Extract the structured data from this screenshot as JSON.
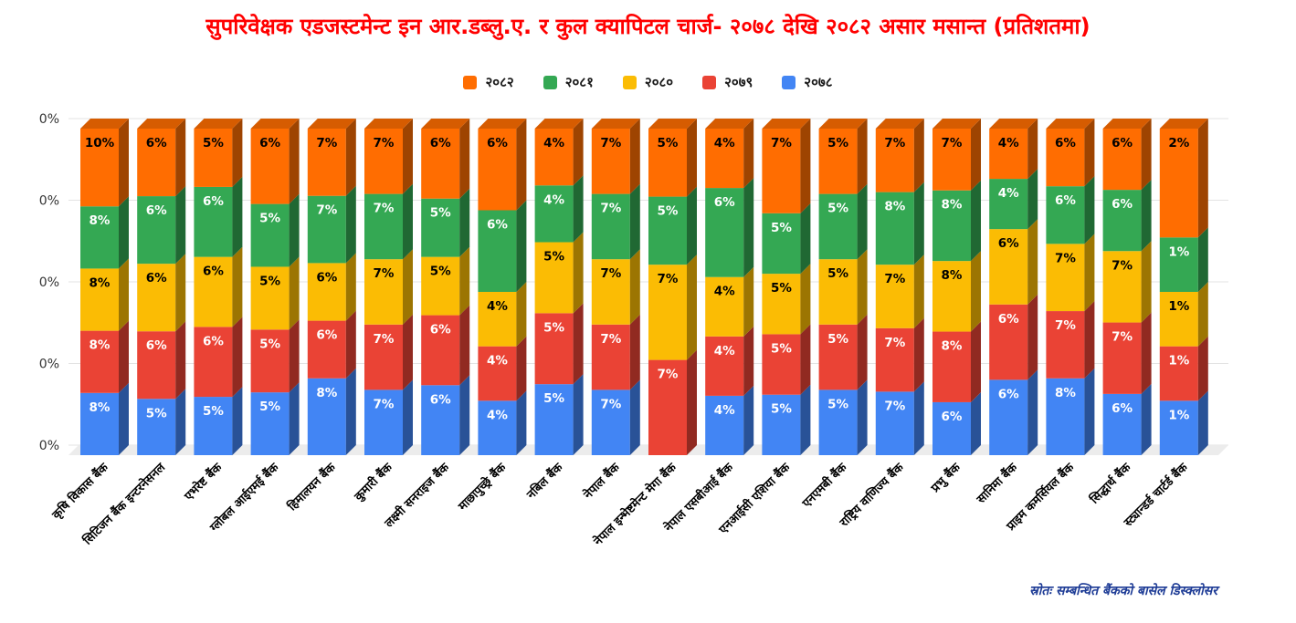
{
  "title": "सुपरिवेक्षक एडजस्टमेन्ट इन आर.डब्लु.ए. र कुल क्यापिटल चार्ज- २०७८ देखि २०८२ असार मसान्त (प्रतिशतमा)",
  "source_note": "स्रोतः सम्बन्धित बैंकको बासेल डिस्क्लोसर",
  "colors": {
    "title": "#FF0000",
    "source_note": "#1E3C96",
    "axis_text": "#333333",
    "x_label_text": "#000000",
    "gridline": "#E3E3E3",
    "floor": "#ECECEC",
    "legend_text": "#1A1A1A"
  },
  "chart_data": {
    "type": "bar",
    "subtype": "3d-stacked-column-percent-of-total",
    "title": "सुपरिवेक्षक एडजस्टमेन्ट इन आर.डब्लु.ए. र कुल क्यापिटल चार्ज- २०७८ देखि २०८२ असार मसान्त (प्रतिशतमा)",
    "legend_position": "top",
    "grid": true,
    "value_suffix": "%",
    "y_axis_tick_labels": [
      "0%",
      "0%",
      "0%",
      "0%",
      "0%"
    ],
    "stack_order_bottom_to_top": [
      "२०७८",
      "२०७९",
      "२०८०",
      "२०८१",
      "२०८२"
    ],
    "categories": [
      "कृषि विकास बैंक",
      "सिटिजन बैंक इन्टरनेसनल",
      "एभरेष्ट बैंक",
      "ग्लोबल आईएमई बैंक",
      "हिमालयन बैंक",
      "कुमारी बैंक",
      "लक्ष्मी सनराइज बैंक",
      "माछापुच्छ्रे बैंक",
      "नबिल बैंक",
      "नेपाल बैंक",
      "नेपाल इन्भेष्टमेन्ट मेगा बैंक",
      "नेपाल एसबीआई बैंक",
      "एनआईसी एशिया बैंक",
      "एनएमबी बैंक",
      "राष्ट्रिय वाणिज्य बैंक",
      "प्रभु बैंक",
      "सानिमा बैंक",
      "प्राइम कमर्सियल बैंक",
      "सिद्धार्थ बैंक",
      "स्ट्यान्डर्ड चार्टर्ड बैंक"
    ],
    "series": [
      {
        "name": "२०८२",
        "color": "#FF6D01",
        "label_color": "#000000",
        "values": [
          10,
          6,
          5,
          6,
          7,
          7,
          6,
          6,
          4,
          7,
          5,
          4,
          7,
          5,
          7,
          7,
          4,
          6,
          6,
          2
        ]
      },
      {
        "name": "२०८१",
        "color": "#34A853",
        "label_color": "#FFFFFF",
        "values": [
          8,
          6,
          6,
          5,
          7,
          7,
          5,
          6,
          4,
          7,
          5,
          6,
          5,
          5,
          8,
          8,
          4,
          6,
          6,
          1
        ]
      },
      {
        "name": "२०८०",
        "color": "#FBBC04",
        "label_color": "#000000",
        "values": [
          8,
          6,
          6,
          5,
          6,
          7,
          5,
          4,
          5,
          7,
          7,
          4,
          5,
          5,
          7,
          8,
          6,
          7,
          7,
          1
        ]
      },
      {
        "name": "२०७९",
        "color": "#EA4335",
        "label_color": "#FFFFFF",
        "values": [
          8,
          6,
          6,
          5,
          6,
          7,
          6,
          4,
          5,
          7,
          7,
          4,
          5,
          5,
          7,
          8,
          6,
          7,
          7,
          1
        ]
      },
      {
        "name": "२०७८",
        "color": "#4285F4",
        "label_color": "#FFFFFF",
        "values": [
          8,
          5,
          5,
          5,
          8,
          7,
          6,
          4,
          5,
          7,
          null,
          4,
          5,
          5,
          7,
          6,
          6,
          8,
          6,
          1
        ]
      }
    ]
  }
}
